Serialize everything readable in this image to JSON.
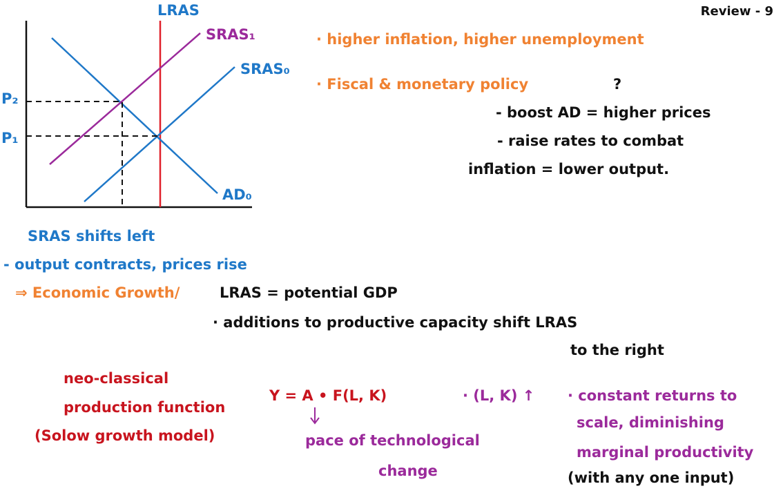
{
  "header": {
    "page_label": "Review - 9"
  },
  "diagram": {
    "labels": {
      "lras": "LRAS",
      "sras1": "SRAS₁",
      "sras0": "SRAS₀",
      "ad0": "AD₀",
      "p2": "P₂",
      "p1": "P₁"
    }
  },
  "notes": {
    "inflation_point": "· higher inflation, higher unemployment",
    "policy_point": "· Fiscal & monetary policy",
    "policy_question": "?",
    "policy_option_1": "- boost AD = higher prices",
    "policy_option_2_line_1": "- raise rates to combat",
    "policy_option_2_line_2": "inflation = lower output.",
    "shift_heading": "SRAS shifts left",
    "shift_effect": "- output contracts, prices rise",
    "growth_heading": "⇒ Economic Growth/",
    "growth_definition": "LRAS = potential GDP",
    "growth_point_line_1": "· additions to productive capacity shift LRAS",
    "growth_point_line_2": "to the right",
    "model_line_1": "neo-classical",
    "model_line_2": "production function",
    "model_line_3": "(Solow growth model)",
    "formula": "Y = A • F(L, K)",
    "formula_note_line_1": "pace of technological",
    "formula_note_line_2": "change",
    "inputs": "· (L, K) ↑",
    "returns_line_1": "· constant returns to",
    "returns_line_2": "scale, diminishing",
    "returns_line_3": "marginal productivity",
    "returns_line_4": "(with any one input)"
  }
}
